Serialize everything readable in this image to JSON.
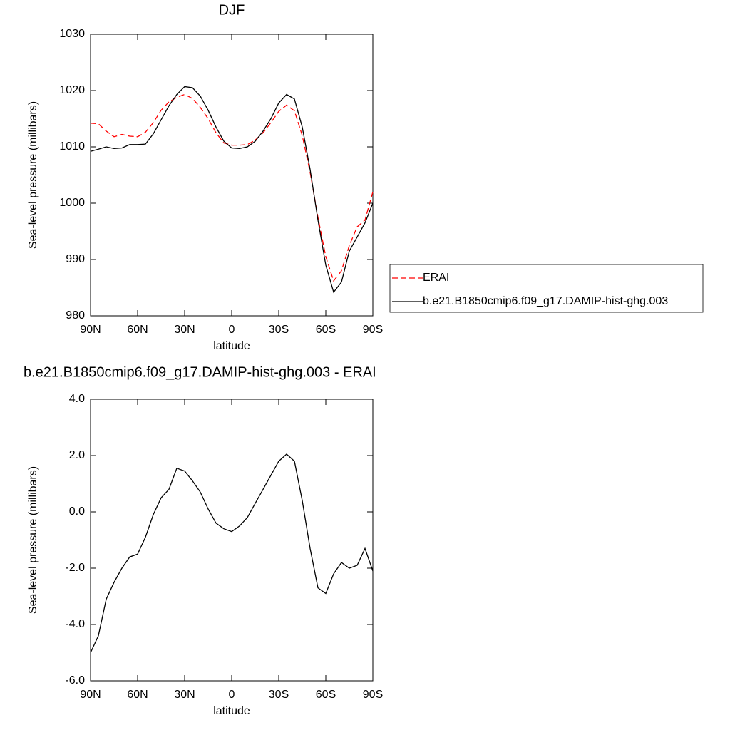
{
  "chart_data": [
    {
      "type": "line",
      "title": "DJF",
      "x_label": "latitude",
      "y_label": "Sea-level pressure (millibars)",
      "x": [
        90,
        85,
        80,
        75,
        70,
        65,
        60,
        55,
        50,
        45,
        40,
        35,
        30,
        25,
        20,
        15,
        10,
        5,
        0,
        -5,
        -10,
        -15,
        -20,
        -25,
        -30,
        -35,
        -40,
        -45,
        -50,
        -55,
        -60,
        -65,
        -70,
        -75,
        -80,
        -85,
        -90
      ],
      "series": [
        {
          "name": "ERAI",
          "color": "#ff0000",
          "style": "dashed",
          "values": [
            1014.2,
            1014.1,
            1012.8,
            1011.8,
            1012.2,
            1011.9,
            1011.8,
            1012.6,
            1014.3,
            1016.5,
            1018.0,
            1018.8,
            1019.3,
            1018.6,
            1017.0,
            1015.0,
            1012.5,
            1010.7,
            1010.3,
            1010.3,
            1010.4,
            1011.2,
            1012.5,
            1014.3,
            1016.3,
            1017.4,
            1016.4,
            1012.0,
            1005.5,
            997.5,
            990.5,
            986.2,
            988.0,
            992.5,
            995.8,
            997.0,
            1002.0
          ]
        },
        {
          "name": "b.e21.B1850cmip6.f09_g17.DAMIP-hist-ghg.003",
          "color": "#000000",
          "style": "solid",
          "values": [
            1009.2,
            1009.6,
            1010.0,
            1009.7,
            1009.8,
            1010.4,
            1010.4,
            1010.5,
            1012.3,
            1014.8,
            1017.3,
            1019.3,
            1020.7,
            1020.5,
            1019.0,
            1016.5,
            1013.5,
            1011.0,
            1009.8,
            1009.7,
            1010.0,
            1011.0,
            1012.8,
            1015.0,
            1017.8,
            1019.3,
            1018.5,
            1013.5,
            1006.0,
            997.0,
            989.0,
            984.2,
            986.0,
            991.5,
            994.0,
            996.5,
            1000.0
          ]
        }
      ],
      "xlim": [
        90,
        -90
      ],
      "xticks": [
        {
          "value": 90,
          "label": "90N"
        },
        {
          "value": 60,
          "label": "60N"
        },
        {
          "value": 30,
          "label": "30N"
        },
        0,
        {
          "value": -30,
          "label": "30S"
        },
        {
          "value": -60,
          "label": "60S"
        },
        {
          "value": -90,
          "label": "90S"
        }
      ],
      "ylim": [
        980,
        1030
      ],
      "yticks": [
        980,
        990,
        1000,
        1010,
        1020,
        1030
      ],
      "legend": "right"
    },
    {
      "type": "line",
      "title": "b.e21.B1850cmip6.f09_g17.DAMIP-hist-ghg.003 - ERAI",
      "x_label": "latitude",
      "y_label": "Sea-level pressure (millibars)",
      "x": [
        90,
        85,
        80,
        75,
        70,
        65,
        60,
        55,
        50,
        45,
        40,
        35,
        30,
        25,
        20,
        15,
        10,
        5,
        0,
        -5,
        -10,
        -15,
        -20,
        -25,
        -30,
        -35,
        -40,
        -45,
        -50,
        -55,
        -60,
        -65,
        -70,
        -75,
        -80,
        -85,
        -90
      ],
      "series": [
        {
          "color": "#000000",
          "style": "solid",
          "values": [
            -5.0,
            -4.4,
            -3.1,
            -2.5,
            -2.0,
            -1.6,
            -1.5,
            -0.9,
            -0.1,
            0.5,
            0.8,
            1.55,
            1.45,
            1.1,
            0.7,
            0.1,
            -0.4,
            -0.6,
            -0.7,
            -0.5,
            -0.2,
            0.3,
            0.8,
            1.3,
            1.8,
            2.05,
            1.8,
            0.4,
            -1.3,
            -2.7,
            -2.9,
            -2.2,
            -1.8,
            -2.0,
            -1.9,
            -1.3,
            -2.1
          ]
        }
      ],
      "xlim": [
        90,
        -90
      ],
      "xticks": [
        {
          "value": 90,
          "label": "90N"
        },
        {
          "value": 60,
          "label": "60N"
        },
        {
          "value": 30,
          "label": "30N"
        },
        0,
        {
          "value": -30,
          "label": "30S"
        },
        {
          "value": -60,
          "label": "60S"
        },
        {
          "value": -90,
          "label": "90S"
        }
      ],
      "ylim": [
        -6,
        4
      ],
      "yticks": [
        {
          "value": -6,
          "label": "-6.0"
        },
        {
          "value": -4,
          "label": "-4.0"
        },
        {
          "value": -2,
          "label": "-2.0"
        },
        {
          "value": 0,
          "label": "0.0"
        },
        {
          "value": 2,
          "label": "2.0"
        },
        {
          "value": 4,
          "label": "4.0"
        }
      ]
    }
  ]
}
